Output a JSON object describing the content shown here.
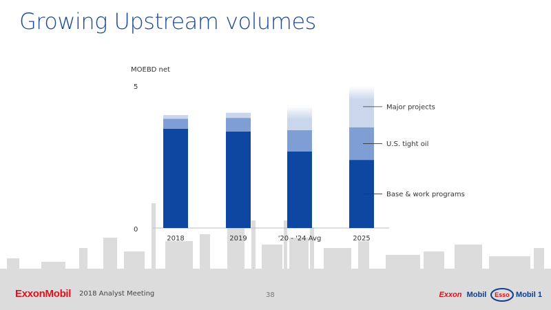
{
  "slide": {
    "title": "Growing Upstream volumes",
    "footer_company": "ExxonMobil",
    "footer_event": "2018 Analyst Meeting",
    "page_number": "38",
    "brands": [
      "Exxon",
      "Mobil",
      "Esso",
      "Mobil 1"
    ]
  },
  "chart_data": {
    "type": "bar",
    "stacked": true,
    "ylabel": "MOEBD net",
    "ylim": [
      0,
      5
    ],
    "yticks": [
      "0",
      "5"
    ],
    "categories": [
      "2018",
      "2019",
      "'20 - '24 Avg",
      "2025"
    ],
    "series": [
      {
        "name": "Base & work programs",
        "values": [
          3.5,
          3.4,
          2.7,
          2.4
        ],
        "color": "#0d47a1"
      },
      {
        "name": "U.S. tight oil",
        "values": [
          0.35,
          0.48,
          0.75,
          1.15
        ],
        "color": "#7f9ed3"
      },
      {
        "name": "Major projects",
        "values": [
          0.13,
          0.18,
          0.85,
          1.45
        ],
        "color": "#c9d6ec"
      }
    ],
    "grid": false,
    "legend": "right"
  }
}
